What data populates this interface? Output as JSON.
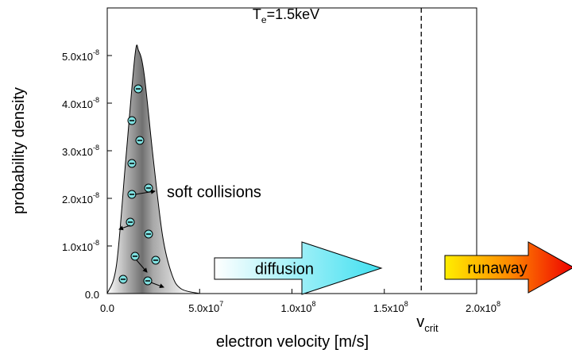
{
  "chart_data": {
    "type": "area",
    "title": {
      "text": "T",
      "subscript": "e",
      "suffix": "=1.5keV"
    },
    "x_label": "electron velocity [m/s]",
    "y_label": "probability density",
    "xlim": [
      0,
      200000000
    ],
    "ylim": [
      0,
      6e-08
    ],
    "xticks": [
      {
        "value": 0,
        "label": "0.0"
      },
      {
        "value": 50000000,
        "label": "5.0x10",
        "exponent": "7"
      },
      {
        "value": 100000000,
        "label": "1.0x10",
        "exponent": "8"
      },
      {
        "value": 150000000,
        "label": "1.5x10",
        "exponent": "8"
      },
      {
        "value": 200000000,
        "label": "2.0x10",
        "exponent": "8"
      }
    ],
    "yticks": [
      {
        "value": 0,
        "label": "0.0"
      },
      {
        "value": 1e-08,
        "label": "1.0x10",
        "exponent": "-8"
      },
      {
        "value": 2e-08,
        "label": "2.0x10",
        "exponent": "-8"
      },
      {
        "value": 3e-08,
        "label": "3.0x10",
        "exponent": "-8"
      },
      {
        "value": 4e-08,
        "label": "4.0x10",
        "exponent": "-8"
      },
      {
        "value": 5e-08,
        "label": "5.0x10",
        "exponent": "-8"
      }
    ],
    "series": [
      {
        "x": [
          0,
          5000000,
          10000000,
          15000000,
          17000000,
          20000000,
          25000000,
          30000000,
          35000000,
          40000000,
          50000000
        ],
        "values": [
          0,
          6e-09,
          2.8e-08,
          5e-08,
          5.1e-08,
          4.6e-08,
          2.8e-08,
          1.2e-08,
          4e-09,
          1e-09,
          0
        ],
        "color": "#000000"
      }
    ],
    "critical_velocity": {
      "value": 170000000,
      "label": "v",
      "subscript": "crit"
    },
    "annotations": {
      "soft": "soft collisions",
      "diffusion": "diffusion",
      "runaway": "runaway"
    }
  }
}
